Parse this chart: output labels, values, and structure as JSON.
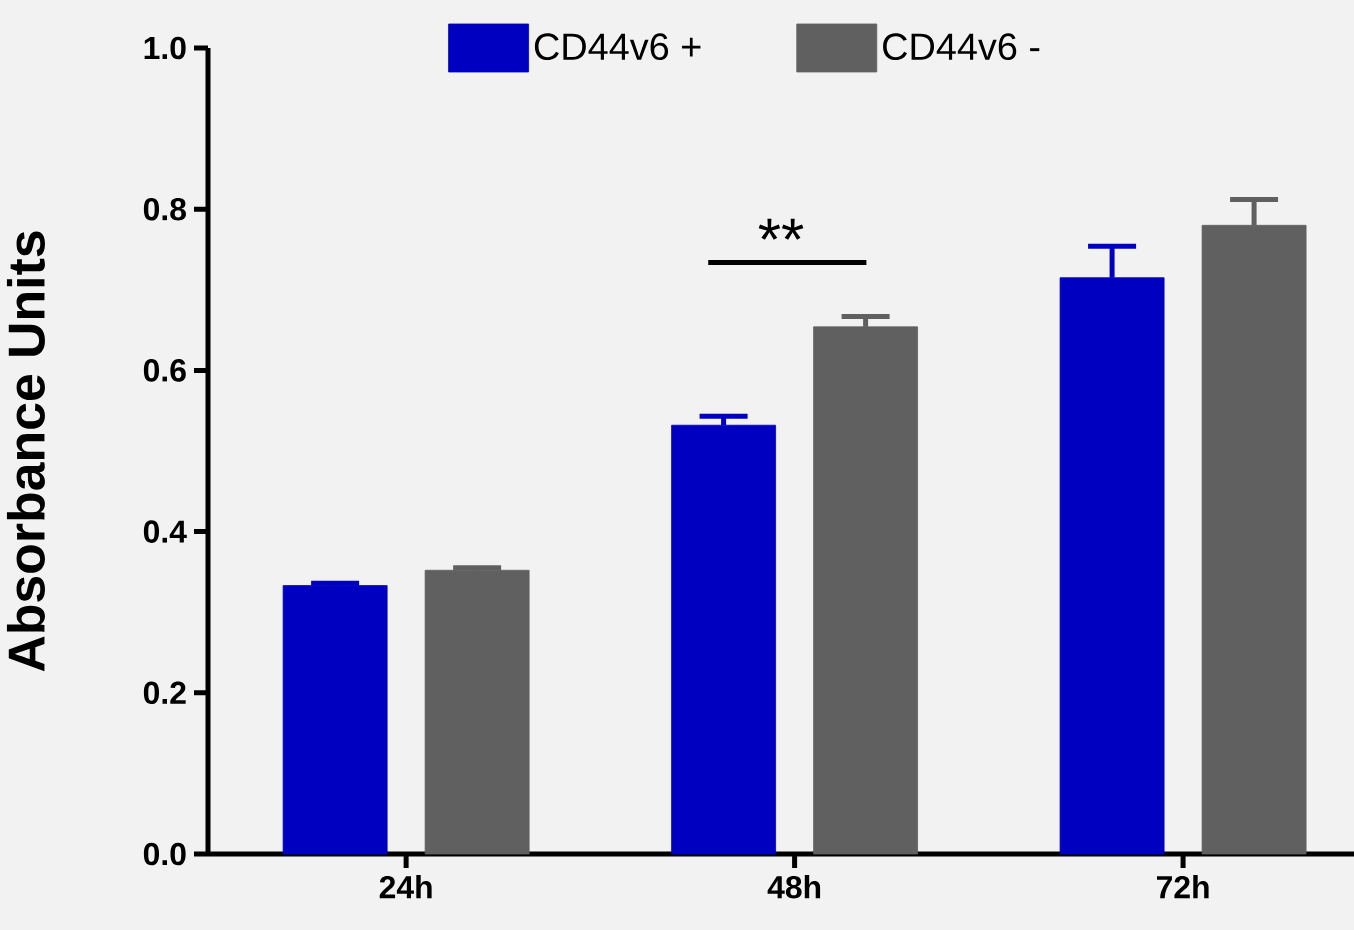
{
  "chart_data": {
    "type": "bar",
    "ylabel": "Absorbance Units",
    "categories": [
      "24h",
      "48h",
      "72h"
    ],
    "series": [
      {
        "name": "CD44v6 +",
        "color": "#0000c0",
        "values": [
          0.333,
          0.532,
          0.715
        ],
        "errors": [
          0.003,
          0.011,
          0.039
        ]
      },
      {
        "name": "CD44v6 -",
        "color": "#606060",
        "values": [
          0.352,
          0.654,
          0.78
        ],
        "errors": [
          0.003,
          0.013,
          0.032
        ]
      }
    ],
    "ylim": [
      0,
      1.0
    ],
    "yticks": [
      {
        "value": 0,
        "label": "0.0"
      },
      {
        "value": 0.2,
        "label": "0.2"
      },
      {
        "value": 0.4,
        "label": "0.4"
      },
      {
        "value": 0.6,
        "label": "0.6"
      },
      {
        "value": 0.8,
        "label": "0.8"
      },
      {
        "value": 1.0,
        "label": "1.0"
      }
    ],
    "annotations": [
      "**"
    ],
    "legend": "top",
    "grid": false
  }
}
